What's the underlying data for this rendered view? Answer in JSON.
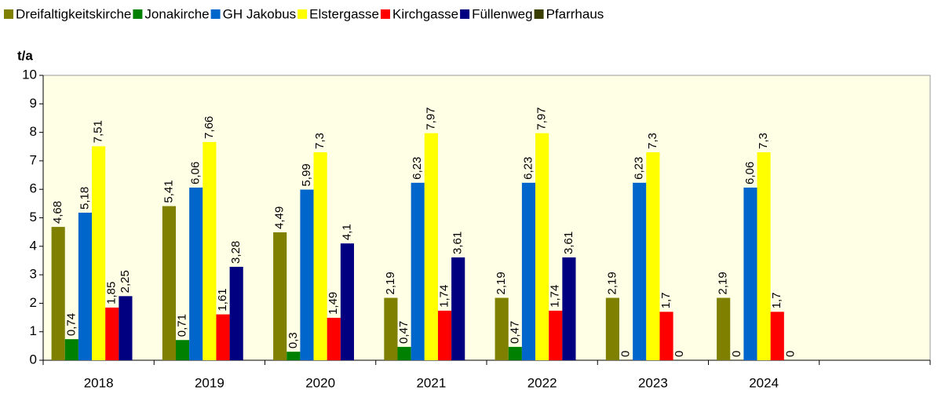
{
  "chart_data": {
    "type": "bar",
    "y_label": "t/a",
    "categories": [
      "2018",
      "2019",
      "2020",
      "2021",
      "2022",
      "2023",
      "2024",
      null
    ],
    "ylim": [
      0,
      10
    ],
    "yticks": [
      0,
      1,
      2,
      3,
      4,
      5,
      6,
      7,
      8,
      9,
      10
    ],
    "grid": false,
    "legend": "top",
    "series": [
      {
        "name": "Dreifaltigkeitskirche",
        "color": "#808000",
        "values": [
          4.68,
          5.41,
          4.49,
          2.19,
          2.19,
          2.19,
          2.19,
          null
        ],
        "value_labels": [
          "4,68",
          "5,41",
          "4,49",
          "2,19",
          "2,19",
          "2,19",
          "2,19",
          null
        ]
      },
      {
        "name": "Jonakirche",
        "color": "#008000",
        "values": [
          0.74,
          0.71,
          0.3,
          0.47,
          0.47,
          0,
          0,
          null
        ],
        "value_labels": [
          "0,74",
          "0,71",
          "0,3",
          "0,47",
          "0,47",
          "0",
          "0",
          null
        ]
      },
      {
        "name": "GH Jakobus",
        "color": "#0066cc",
        "values": [
          5.18,
          6.06,
          5.99,
          6.23,
          6.23,
          6.23,
          6.06,
          null
        ],
        "value_labels": [
          "5,18",
          "6,06",
          "5,99",
          "6,23",
          "6,23",
          "6,23",
          "6,06",
          null
        ]
      },
      {
        "name": "Elstergasse",
        "color": "#ffff00",
        "values": [
          7.51,
          7.66,
          7.3,
          7.97,
          7.97,
          7.3,
          7.3,
          null
        ],
        "value_labels": [
          "7,51",
          "7,66",
          "7,3",
          "7,97",
          "7,97",
          "7,3",
          "7,3",
          null
        ]
      },
      {
        "name": "Kirchgasse",
        "color": "#ff0000",
        "values": [
          1.85,
          1.61,
          1.49,
          1.74,
          1.74,
          1.7,
          1.7,
          null
        ],
        "value_labels": [
          "1,85",
          "1,61",
          "1,49",
          "1,74",
          "1,74",
          "1,7",
          "1,7",
          null
        ]
      },
      {
        "name": "Füllenweg",
        "color": "#000080",
        "values": [
          2.25,
          3.28,
          4.1,
          3.61,
          3.61,
          0,
          0,
          null
        ],
        "value_labels": [
          "2,25",
          "3,28",
          "4,1",
          "3,61",
          "3,61",
          "0",
          "0",
          null
        ]
      },
      {
        "name": "Pfarrhaus",
        "color": "#3a3f00",
        "values": [
          null,
          null,
          null,
          null,
          null,
          null,
          null,
          null
        ],
        "value_labels": [
          null,
          null,
          null,
          null,
          null,
          null,
          null,
          null
        ]
      }
    ]
  }
}
